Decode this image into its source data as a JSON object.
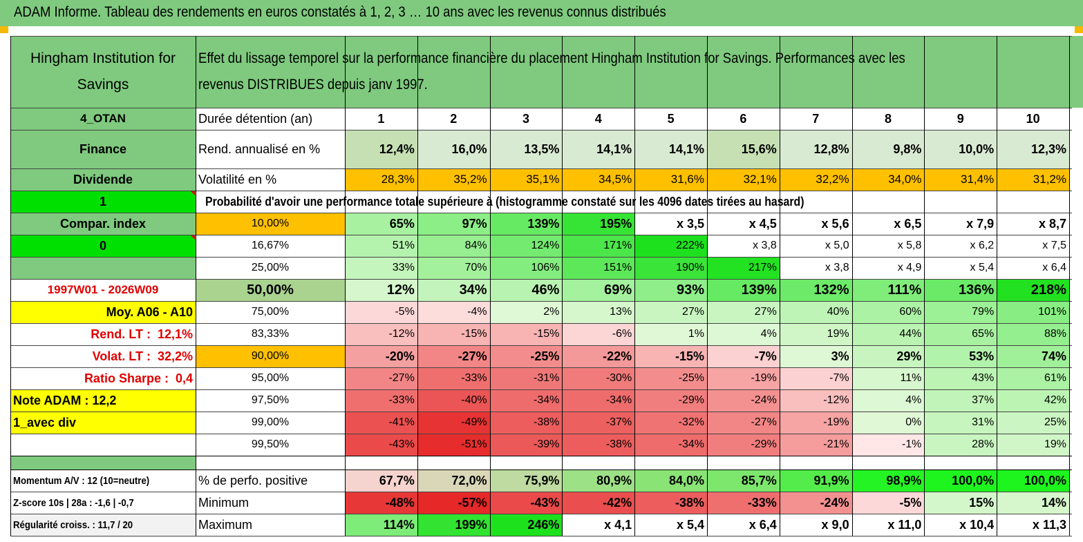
{
  "title": "ADAM Informe. Tableau des rendements en euros constatés à 1, 2, 3 … 10 ans avec les revenus connus distribués",
  "header": {
    "company": "Hingham Institution for Savings",
    "description_line1": "Effet du lissage temporel sur la performance financière du placement Hingham Institution for Savings. Performances avec les",
    "description_line2": "revenus DISTRIBUES depuis janv 1997."
  },
  "left": {
    "code": "4_OTAN",
    "sector": "Finance",
    "type": "Dividende",
    "flag1": "1",
    "compar_label": "Compar. index",
    "flag0": "0",
    "period": "1997W01 - 2026W09",
    "moy": "Moy. A06 - A10",
    "rend_label": "Rend. LT :",
    "rend_value": "12,1%",
    "volat_label": "Volat. LT :",
    "volat_value": "32,2%",
    "sharpe_label": "Ratio Sharpe :",
    "sharpe_value": "0,4",
    "note": "Note ADAM : 12,2",
    "avec_div": "1_avec div",
    "momentum": "Momentum A/V : 12 (10=neutre)",
    "zscore": "Z-score 10s | 28a : -1,6 | -0,7",
    "regularite": "Régularité croiss. : 11,7 / 20"
  },
  "labels": {
    "duree": "Durée détention (an)",
    "rend": "Rend. annualisé en %",
    "volat": "Volatilité en %",
    "proba": "Probabilité d'avoir une performance totale supérieure à (histogramme constaté sur les 4096 dates tirées au hasard)",
    "pos": "% de perfo. positive",
    "min": "Minimum",
    "max": "Maximum"
  },
  "years": [
    "1",
    "2",
    "3",
    "4",
    "5",
    "6",
    "7",
    "8",
    "9",
    "10"
  ],
  "rend": [
    "12,4%",
    "16,0%",
    "13,5%",
    "14,1%",
    "14,1%",
    "15,6%",
    "12,8%",
    "9,8%",
    "10,0%",
    "12,3%"
  ],
  "volat": [
    "28,3%",
    "35,2%",
    "35,1%",
    "34,5%",
    "31,6%",
    "32,1%",
    "32,2%",
    "34,0%",
    "31,4%",
    "31,2%"
  ],
  "prob_rows": [
    {
      "p": "10,00%",
      "v": [
        "65%",
        "97%",
        "139%",
        "195%",
        "x 3,5",
        "x 4,5",
        "x 5,6",
        "x 6,5",
        "x 7,9",
        "x 8,7"
      ]
    },
    {
      "p": "16,67%",
      "v": [
        "51%",
        "84%",
        "124%",
        "171%",
        "222%",
        "x 3,8",
        "x 5,0",
        "x 5,8",
        "x 6,2",
        "x 7,5"
      ]
    },
    {
      "p": "25,00%",
      "v": [
        "33%",
        "70%",
        "106%",
        "151%",
        "190%",
        "217%",
        "x 3,8",
        "x 4,9",
        "x 5,4",
        "x 6,4"
      ]
    },
    {
      "p": "50,00%",
      "v": [
        "12%",
        "34%",
        "46%",
        "69%",
        "93%",
        "139%",
        "132%",
        "111%",
        "136%",
        "218%"
      ]
    },
    {
      "p": "75,00%",
      "v": [
        "-5%",
        "-4%",
        "2%",
        "13%",
        "27%",
        "27%",
        "40%",
        "60%",
        "79%",
        "101%"
      ]
    },
    {
      "p": "83,33%",
      "v": [
        "-12%",
        "-15%",
        "-15%",
        "-6%",
        "1%",
        "4%",
        "19%",
        "44%",
        "65%",
        "88%"
      ]
    },
    {
      "p": "90,00%",
      "v": [
        "-20%",
        "-27%",
        "-25%",
        "-22%",
        "-15%",
        "-7%",
        "3%",
        "29%",
        "53%",
        "74%"
      ]
    },
    {
      "p": "95,00%",
      "v": [
        "-27%",
        "-33%",
        "-31%",
        "-30%",
        "-25%",
        "-19%",
        "-7%",
        "11%",
        "43%",
        "61%"
      ]
    },
    {
      "p": "97,50%",
      "v": [
        "-33%",
        "-40%",
        "-34%",
        "-34%",
        "-29%",
        "-24%",
        "-12%",
        "4%",
        "37%",
        "42%"
      ]
    },
    {
      "p": "99,00%",
      "v": [
        "-41%",
        "-49%",
        "-38%",
        "-37%",
        "-32%",
        "-27%",
        "-19%",
        "0%",
        "31%",
        "25%"
      ]
    },
    {
      "p": "99,50%",
      "v": [
        "-43%",
        "-51%",
        "-39%",
        "-38%",
        "-34%",
        "-29%",
        "-21%",
        "-1%",
        "28%",
        "19%"
      ]
    }
  ],
  "pos": [
    "67,7%",
    "72,0%",
    "75,9%",
    "80,9%",
    "84,0%",
    "85,7%",
    "91,9%",
    "98,9%",
    "100,0%",
    "100,0%"
  ],
  "min": [
    "-48%",
    "-57%",
    "-43%",
    "-42%",
    "-38%",
    "-33%",
    "-24%",
    "-5%",
    "15%",
    "14%"
  ],
  "max": [
    "114%",
    "199%",
    "246%",
    "x 4,1",
    "x 5,4",
    "x 6,4",
    "x 9,0",
    "x 11,0",
    "x 10,4",
    "x 11,3"
  ],
  "colors": {
    "header_green": "#7fca7f",
    "light_green": "#a9d38f",
    "orange": "#ffc000",
    "yellow": "#ffff00",
    "bright_green": "#00e000",
    "red_text": "#e00000"
  }
}
